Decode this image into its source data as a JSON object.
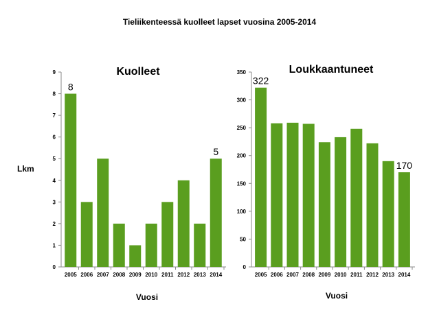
{
  "title": "Tieliikenteessä kuolleet lapset vuosina 2005-2014",
  "ylabel": "Lkm",
  "bar_color": "#5a9e1f",
  "chart_data": [
    {
      "type": "bar",
      "title": "Kuolleet",
      "xlabel": "Vuosi",
      "ylabel": "Lkm",
      "categories": [
        "2005",
        "2006",
        "2007",
        "2008",
        "2009",
        "2010",
        "2011",
        "2012",
        "2013",
        "2014"
      ],
      "values": [
        8,
        3,
        5,
        2,
        1,
        2,
        3,
        4,
        2,
        5
      ],
      "ylim": [
        0,
        9
      ],
      "yticks": [
        0,
        1,
        2,
        3,
        4,
        5,
        6,
        7,
        8,
        9
      ],
      "data_labels": [
        {
          "index": 0,
          "text": "8"
        },
        {
          "index": 9,
          "text": "5"
        }
      ],
      "grid": false,
      "legend": "none"
    },
    {
      "type": "bar",
      "title": "Loukkaantuneet",
      "xlabel": "Vuosi",
      "ylabel": "",
      "categories": [
        "2005",
        "2006",
        "2007",
        "2008",
        "2009",
        "2010",
        "2011",
        "2012",
        "2013",
        "2014"
      ],
      "values": [
        322,
        258,
        259,
        257,
        224,
        233,
        248,
        222,
        190,
        170
      ],
      "ylim": [
        0,
        350
      ],
      "yticks": [
        0,
        50,
        100,
        150,
        200,
        250,
        300,
        350
      ],
      "data_labels": [
        {
          "index": 0,
          "text": "322"
        },
        {
          "index": 9,
          "text": "170"
        }
      ],
      "grid": false,
      "legend": "none"
    }
  ]
}
